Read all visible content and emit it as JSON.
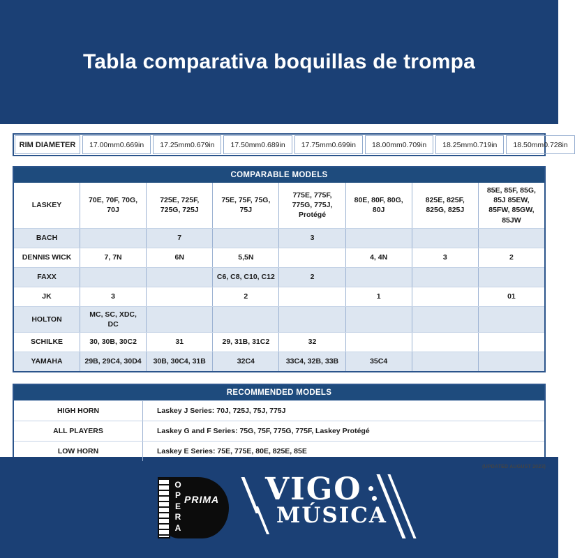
{
  "page": {
    "title": "Tabla comparativa boquillas de trompa",
    "updated_note": "(UPDATED AUGUST 2023)"
  },
  "colors": {
    "band_navy": "#1b4075",
    "table_header_navy": "#1e4b7d",
    "row_alt": "#dde6f1",
    "border_outer": "#2b548b",
    "border_inner": "#9cb2d2"
  },
  "rim_table": {
    "label": "RIM DIAMETER",
    "cells": [
      {
        "mm": "17.00mm",
        "in": "0.669in"
      },
      {
        "mm": "17.25mm",
        "in": "0.679in"
      },
      {
        "mm": "17.50mm",
        "in": "0.689in"
      },
      {
        "mm": "17.75mm",
        "in": "0.699in"
      },
      {
        "mm": "18.00mm",
        "in": "0.709in"
      },
      {
        "mm": "18.25mm",
        "in": "0.719in"
      },
      {
        "mm": "18.50mm",
        "in": "0.728in"
      }
    ]
  },
  "comparable": {
    "header": "COMPARABLE MODELS",
    "rows": [
      {
        "brand": "LASKEY",
        "cells": [
          "70E, 70F, 70G, 70J",
          "725E, 725F, 725G, 725J",
          "75E, 75F, 75G, 75J",
          "775E, 775F, 775G, 775J, Protégé",
          "80E, 80F, 80G, 80J",
          "825E, 825F, 825G, 825J",
          "85E, 85F, 85G, 85J 85EW, 85FW, 85GW, 85JW"
        ]
      },
      {
        "brand": "BACH",
        "cells": [
          "",
          "7",
          "",
          "3",
          "",
          "",
          ""
        ]
      },
      {
        "brand": "DENNIS WICK",
        "cells": [
          "7, 7N",
          "6N",
          "5,5N",
          "",
          "4, 4N",
          "3",
          "2"
        ]
      },
      {
        "brand": "FAXX",
        "cells": [
          "",
          "",
          "C6, C8, C10, C12",
          "2",
          "",
          "",
          ""
        ]
      },
      {
        "brand": "JK",
        "cells": [
          "3",
          "",
          "2",
          "",
          "1",
          "",
          "01"
        ]
      },
      {
        "brand": "HOLTON",
        "cells": [
          "MC, SC, XDC, DC",
          "",
          "",
          "",
          "",
          "",
          ""
        ]
      },
      {
        "brand": "SCHILKE",
        "cells": [
          "30, 30B, 30C2",
          "31",
          "29, 31B, 31C2",
          "32",
          "",
          "",
          ""
        ]
      },
      {
        "brand": "YAMAHA",
        "cells": [
          "29B, 29C4, 30D4",
          "30B, 30C4, 31B",
          "32C4",
          "33C4, 32B, 33B",
          "35C4",
          "",
          ""
        ]
      }
    ]
  },
  "recommended": {
    "header": "RECOMMENDED MODELS",
    "rows": [
      {
        "label": "HIGH HORN",
        "value": "Laskey J Series: 70J, 725J, 75J, 775J"
      },
      {
        "label": "ALL PLAYERS",
        "value": "Laskey G and F Series: 75G, 75F, 775G, 775F, Laskey Protégé"
      },
      {
        "label": "LOW HORN",
        "value": "Laskey E Series: 75E, 775E, 80E, 825E, 85E"
      }
    ]
  },
  "footer": {
    "logo_prima": {
      "prima": "PRIMA",
      "opera_vertical": "O\nP\nE\nR\nA"
    },
    "logo_vigo": {
      "line1": "VIGO",
      "line2": "MÚSICA"
    }
  }
}
